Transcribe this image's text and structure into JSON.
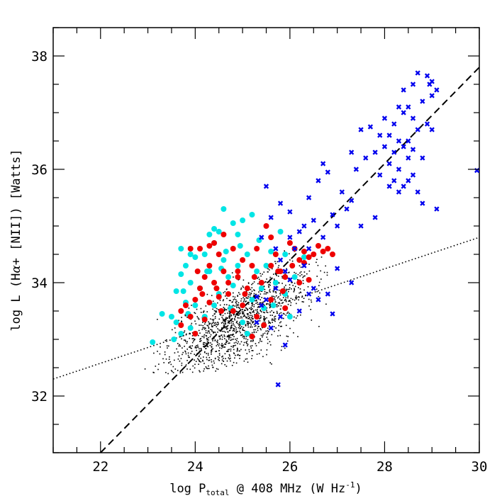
{
  "chart_data": {
    "type": "scatter",
    "title": "",
    "xlabel": {
      "prefix": "log P",
      "subscript": "total",
      "suffix": " @ 408 MHz (W Hz",
      "superscript": "-1",
      "close": ")"
    },
    "ylabel": {
      "prefix": "log  L (H",
      "alpha": "α",
      "suffix": "+ [NII]) [Watts]"
    },
    "xlim": [
      21,
      30
    ],
    "ylim": [
      31,
      38.5
    ],
    "x_ticks": [
      "22",
      "24",
      "26",
      "28",
      "30"
    ],
    "y_ticks": [
      "32",
      "34",
      "36",
      "38"
    ],
    "grid": false,
    "lines": [
      {
        "name": "dashed-fit",
        "style": "dashed",
        "x": [
          22.0,
          30.0
        ],
        "y": [
          31.0,
          37.8
        ]
      },
      {
        "name": "dotted-fit",
        "style": "dotted",
        "x": [
          21.0,
          30.0
        ],
        "y": [
          32.3,
          34.8
        ]
      }
    ],
    "series": [
      {
        "name": "blue-crosses",
        "color": "#0000ee",
        "marker": "x",
        "points": [
          [
            28.7,
            37.7
          ],
          [
            28.9,
            37.65
          ],
          [
            29.0,
            37.55
          ],
          [
            28.6,
            37.5
          ],
          [
            28.95,
            37.5
          ],
          [
            29.1,
            37.4
          ],
          [
            28.4,
            37.4
          ],
          [
            29.0,
            37.3
          ],
          [
            28.8,
            37.2
          ],
          [
            28.3,
            37.1
          ],
          [
            28.4,
            37.0
          ],
          [
            28.5,
            37.1
          ],
          [
            28.0,
            36.9
          ],
          [
            28.6,
            36.9
          ],
          [
            28.9,
            36.8
          ],
          [
            28.2,
            36.8
          ],
          [
            27.7,
            36.75
          ],
          [
            29.0,
            36.7
          ],
          [
            28.1,
            36.6
          ],
          [
            28.3,
            36.5
          ],
          [
            28.5,
            36.5
          ],
          [
            27.5,
            36.7
          ],
          [
            27.9,
            36.6
          ],
          [
            28.7,
            36.7
          ],
          [
            28.0,
            36.4
          ],
          [
            28.4,
            36.4
          ],
          [
            28.6,
            36.35
          ],
          [
            27.8,
            36.3
          ],
          [
            28.2,
            36.3
          ],
          [
            28.5,
            36.2
          ],
          [
            27.3,
            36.3
          ],
          [
            27.6,
            36.2
          ],
          [
            28.8,
            36.2
          ],
          [
            28.3,
            36.0
          ],
          [
            28.1,
            36.1
          ],
          [
            27.4,
            36.0
          ],
          [
            26.7,
            36.1
          ],
          [
            26.8,
            35.95
          ],
          [
            27.9,
            35.9
          ],
          [
            28.2,
            35.8
          ],
          [
            28.4,
            35.7
          ],
          [
            28.6,
            35.9
          ],
          [
            28.5,
            35.8
          ],
          [
            28.7,
            35.6
          ],
          [
            28.1,
            35.7
          ],
          [
            28.3,
            35.6
          ],
          [
            27.1,
            35.6
          ],
          [
            26.6,
            35.8
          ],
          [
            26.4,
            35.5
          ],
          [
            27.3,
            35.45
          ],
          [
            27.2,
            35.3
          ],
          [
            26.9,
            35.2
          ],
          [
            26.5,
            35.1
          ],
          [
            27.0,
            35.0
          ],
          [
            26.3,
            35.0
          ],
          [
            29.1,
            35.3
          ],
          [
            28.8,
            35.4
          ],
          [
            27.8,
            35.15
          ],
          [
            27.5,
            35.0
          ],
          [
            26.2,
            34.9
          ],
          [
            26.0,
            34.8
          ],
          [
            25.6,
            35.15
          ],
          [
            25.4,
            34.8
          ],
          [
            25.7,
            34.6
          ],
          [
            26.1,
            34.6
          ],
          [
            26.4,
            34.6
          ],
          [
            26.7,
            34.8
          ],
          [
            25.8,
            34.4
          ],
          [
            25.9,
            34.2
          ],
          [
            26.3,
            34.3
          ],
          [
            26.0,
            34.05
          ],
          [
            25.7,
            33.9
          ],
          [
            26.6,
            33.7
          ],
          [
            26.4,
            33.8
          ],
          [
            25.5,
            33.7
          ],
          [
            26.2,
            33.5
          ],
          [
            25.4,
            33.6
          ],
          [
            25.3,
            33.75
          ],
          [
            25.8,
            33.4
          ],
          [
            25.6,
            33.2
          ],
          [
            25.9,
            32.9
          ],
          [
            25.3,
            33.3
          ],
          [
            27.0,
            34.25
          ],
          [
            26.8,
            33.8
          ],
          [
            26.9,
            33.45
          ],
          [
            26.5,
            33.9
          ],
          [
            27.3,
            34.0
          ],
          [
            25.75,
            32.2
          ],
          [
            25.8,
            35.4
          ],
          [
            25.5,
            35.7
          ],
          [
            26.0,
            35.25
          ],
          [
            29.95,
            35.98
          ]
        ]
      },
      {
        "name": "red-circles",
        "color": "#ee0000",
        "marker": "o",
        "points": [
          [
            23.7,
            33.5
          ],
          [
            23.7,
            33.25
          ],
          [
            23.8,
            33.6
          ],
          [
            23.9,
            33.4
          ],
          [
            24.0,
            33.1
          ],
          [
            24.0,
            33.7
          ],
          [
            24.1,
            33.9
          ],
          [
            24.2,
            34.1
          ],
          [
            24.3,
            34.3
          ],
          [
            24.4,
            34.0
          ],
          [
            24.5,
            34.5
          ],
          [
            24.6,
            34.2
          ],
          [
            24.7,
            33.8
          ],
          [
            24.8,
            34.6
          ],
          [
            24.9,
            34.1
          ],
          [
            25.0,
            34.4
          ],
          [
            25.1,
            33.9
          ],
          [
            25.2,
            34.3
          ],
          [
            25.3,
            34.6
          ],
          [
            25.4,
            34.0
          ],
          [
            25.5,
            35.0
          ],
          [
            25.6,
            34.8
          ],
          [
            25.7,
            34.5
          ],
          [
            25.8,
            34.2
          ],
          [
            25.9,
            34.1
          ],
          [
            26.0,
            34.7
          ],
          [
            26.1,
            34.6
          ],
          [
            26.2,
            34.4
          ],
          [
            26.3,
            34.55
          ],
          [
            26.4,
            34.45
          ],
          [
            26.5,
            34.5
          ],
          [
            26.6,
            34.65
          ],
          [
            26.7,
            34.55
          ],
          [
            26.8,
            34.6
          ],
          [
            26.9,
            34.5
          ],
          [
            26.4,
            34.05
          ],
          [
            26.2,
            34.0
          ],
          [
            25.9,
            33.55
          ],
          [
            25.6,
            33.7
          ],
          [
            25.3,
            33.4
          ],
          [
            25.0,
            33.6
          ],
          [
            24.8,
            33.5
          ],
          [
            24.5,
            33.75
          ],
          [
            24.3,
            33.65
          ],
          [
            24.2,
            33.35
          ],
          [
            24.4,
            34.7
          ],
          [
            24.6,
            34.85
          ],
          [
            24.3,
            34.65
          ],
          [
            24.1,
            34.6
          ],
          [
            23.9,
            34.6
          ],
          [
            25.2,
            33.05
          ],
          [
            25.45,
            33.25
          ],
          [
            24.7,
            34.0
          ],
          [
            25.05,
            33.8
          ],
          [
            25.25,
            34.1
          ],
          [
            24.9,
            34.2
          ],
          [
            25.6,
            34.3
          ],
          [
            25.75,
            34.2
          ],
          [
            26.05,
            34.3
          ],
          [
            26.3,
            34.35
          ],
          [
            25.85,
            33.85
          ],
          [
            24.55,
            33.5
          ],
          [
            24.15,
            33.8
          ],
          [
            24.05,
            34.2
          ],
          [
            24.45,
            33.9
          ]
        ]
      },
      {
        "name": "cyan-circles",
        "color": "#00e5e5",
        "marker": "o",
        "points": [
          [
            23.1,
            32.95
          ],
          [
            23.3,
            33.45
          ],
          [
            23.5,
            33.4
          ],
          [
            23.6,
            33.3
          ],
          [
            23.7,
            33.1
          ],
          [
            23.8,
            33.65
          ],
          [
            23.6,
            33.85
          ],
          [
            23.9,
            34.0
          ],
          [
            23.7,
            34.15
          ],
          [
            23.8,
            34.3
          ],
          [
            23.9,
            34.5
          ],
          [
            23.7,
            34.6
          ],
          [
            24.0,
            34.45
          ],
          [
            24.2,
            34.5
          ],
          [
            24.3,
            34.85
          ],
          [
            24.4,
            34.95
          ],
          [
            24.5,
            34.9
          ],
          [
            24.6,
            35.3
          ],
          [
            24.8,
            35.05
          ],
          [
            24.9,
            34.85
          ],
          [
            25.0,
            35.1
          ],
          [
            25.2,
            35.2
          ],
          [
            24.4,
            34.7
          ],
          [
            24.6,
            34.4
          ],
          [
            24.3,
            34.2
          ],
          [
            24.1,
            33.9
          ],
          [
            24.0,
            33.6
          ],
          [
            24.5,
            33.8
          ],
          [
            24.7,
            34.1
          ],
          [
            24.9,
            34.3
          ],
          [
            25.1,
            34.5
          ],
          [
            25.3,
            34.2
          ],
          [
            25.5,
            34.3
          ],
          [
            25.7,
            34.0
          ],
          [
            25.9,
            33.8
          ],
          [
            25.4,
            33.9
          ],
          [
            25.2,
            33.7
          ],
          [
            24.8,
            33.95
          ],
          [
            24.4,
            33.6
          ],
          [
            24.2,
            33.4
          ],
          [
            23.9,
            33.2
          ],
          [
            25.0,
            33.3
          ],
          [
            25.1,
            33.1
          ],
          [
            25.8,
            34.9
          ],
          [
            25.9,
            34.5
          ],
          [
            26.1,
            34.1
          ],
          [
            25.6,
            34.55
          ],
          [
            24.65,
            34.55
          ],
          [
            24.95,
            34.65
          ],
          [
            25.35,
            34.75
          ],
          [
            26.3,
            34.45
          ],
          [
            23.55,
            33.0
          ],
          [
            24.75,
            33.55
          ],
          [
            25.65,
            33.6
          ],
          [
            26.0,
            33.4
          ],
          [
            25.45,
            33.55
          ],
          [
            24.25,
            34.2
          ],
          [
            23.75,
            33.85
          ],
          [
            24.55,
            34.25
          ],
          [
            23.85,
            33.45
          ]
        ]
      }
    ],
    "background_cloud": {
      "name": "black-dots",
      "color": "#000000",
      "description_count": 1400,
      "center": [
        24.9,
        33.3
      ],
      "x_range": [
        22.8,
        27.0
      ],
      "y_range": [
        32.4,
        34.6
      ]
    }
  }
}
